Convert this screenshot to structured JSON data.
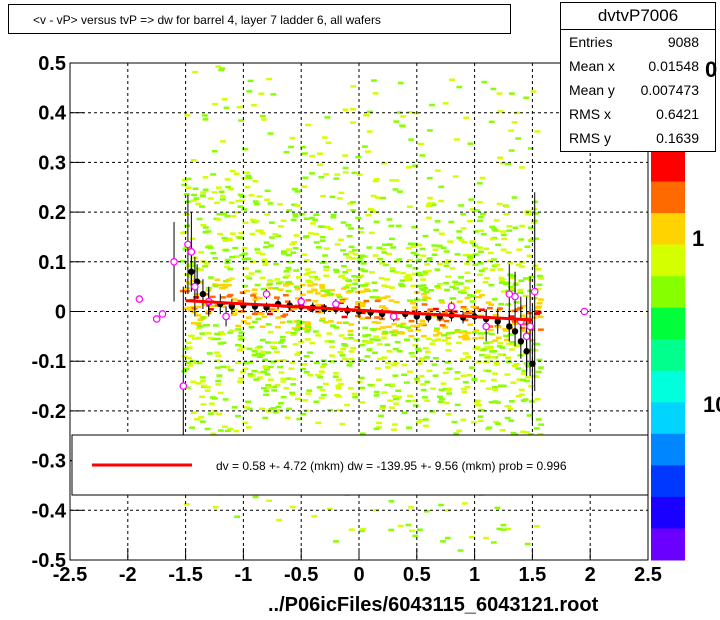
{
  "title": "<v - vP>       versus  tvP =>  dw for barrel 4, layer 7 ladder 6, all wafers",
  "stats": {
    "name": "dvtvP7006",
    "rows": [
      {
        "label": "Entries",
        "value": "9088"
      },
      {
        "label": "Mean x",
        "value": "0.01548"
      },
      {
        "label": "Mean y",
        "value": "0.007473"
      },
      {
        "label": "RMS x",
        "value": "0.6421"
      },
      {
        "label": "RMS y",
        "value": "0.1639"
      }
    ]
  },
  "footer": "../P06icFiles/6043115_6043121.root",
  "palette_labels": [
    "0",
    "1",
    "10"
  ],
  "fit_legend": "dv =    0.58 +-  4.72 (mkm) dw = -139.95 +-  9.56 (mkm) prob = 0.996",
  "colors": {
    "fit_line": "#ff0000",
    "profile_black": "#000000",
    "profile_magenta": "#ff00ff"
  },
  "chart_data": {
    "type": "heatmap",
    "title": "",
    "xlabel": "",
    "ylabel": "",
    "xlim": [
      -2.5,
      2.5
    ],
    "ylim": [
      -0.5,
      0.5
    ],
    "xticks": [
      "-2.5",
      "-2",
      "-1.5",
      "-1",
      "-0.5",
      "0",
      "0.5",
      "1",
      "1.5",
      "2",
      "2.5"
    ],
    "yticks": [
      "0.5",
      "0.4",
      "0.3",
      "0.2",
      "0.1",
      "0",
      "-0.1",
      "-0.2",
      "-0.3",
      "-0.4",
      "-0.5"
    ],
    "grid": true,
    "fit_line": {
      "x": [
        -1.5,
        1.5
      ],
      "y": [
        0.022,
        -0.017
      ]
    },
    "profile_black": {
      "x": [
        -1.45,
        -1.4,
        -1.35,
        -1.3,
        -1.2,
        -1.1,
        -1.0,
        -0.9,
        -0.8,
        -0.7,
        -0.6,
        -0.5,
        -0.4,
        -0.3,
        -0.2,
        -0.1,
        0.0,
        0.1,
        0.2,
        0.3,
        0.4,
        0.5,
        0.6,
        0.7,
        0.8,
        0.9,
        1.0,
        1.1,
        1.2,
        1.3,
        1.35,
        1.4,
        1.45,
        1.5
      ],
      "y": [
        0.08,
        0.06,
        0.035,
        0.02,
        0.015,
        0.01,
        0.012,
        0.01,
        0.008,
        0.015,
        0.012,
        0.01,
        0.008,
        0.005,
        0.005,
        0.002,
        0.0,
        -0.002,
        -0.005,
        -0.01,
        -0.005,
        -0.01,
        -0.012,
        -0.01,
        -0.008,
        -0.012,
        -0.01,
        -0.015,
        -0.02,
        -0.03,
        -0.04,
        -0.06,
        -0.08,
        -0.105
      ],
      "err": [
        0.04,
        0.035,
        0.03,
        0.025,
        0.02,
        0.015,
        0.012,
        0.012,
        0.01,
        0.01,
        0.01,
        0.01,
        0.01,
        0.01,
        0.01,
        0.01,
        0.01,
        0.01,
        0.01,
        0.01,
        0.01,
        0.01,
        0.01,
        0.01,
        0.012,
        0.012,
        0.015,
        0.02,
        0.025,
        0.03,
        0.03,
        0.035,
        0.04,
        0.12
      ]
    },
    "profile_magenta": {
      "x": [
        -1.9,
        -1.75,
        -1.7,
        -1.6,
        -1.52,
        -1.48,
        -1.45,
        -1.42,
        -1.3,
        -1.15,
        -0.8,
        -0.5,
        -0.2,
        0.3,
        0.8,
        1.1,
        1.3,
        1.35,
        1.4,
        1.45,
        1.48,
        1.52,
        1.95
      ],
      "y": [
        0.025,
        -0.015,
        -0.005,
        0.1,
        -0.15,
        0.135,
        0.12,
        0.05,
        0.02,
        -0.01,
        0.035,
        0.02,
        0.015,
        -0.01,
        0.01,
        -0.03,
        0.035,
        0.03,
        -0.02,
        -0.05,
        -0.03,
        0.04,
        0.0
      ],
      "err": [
        0.0,
        0.0,
        0.0,
        0.08,
        0.2,
        0.1,
        0.08,
        0.06,
        0.03,
        0.02,
        0.01,
        0.01,
        0.01,
        0.01,
        0.01,
        0.03,
        0.06,
        0.05,
        0.05,
        0.08,
        0.1,
        0.2,
        0.0
      ]
    },
    "palette": [
      "#ff0000",
      "#ff6a00",
      "#ffd300",
      "#d4ff00",
      "#86ff00",
      "#00ff3a",
      "#00ff8c",
      "#00ffda",
      "#00d4ff",
      "#0086ff",
      "#0038ff",
      "#1a00ff",
      "#6a00ff"
    ]
  }
}
